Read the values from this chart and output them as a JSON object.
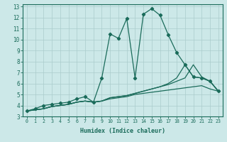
{
  "title": "",
  "xlabel": "Humidex (Indice chaleur)",
  "bg_color": "#cce8e8",
  "grid_color": "#aacccc",
  "line_color": "#1a6b5a",
  "xlim": [
    -0.5,
    23.5
  ],
  "ylim": [
    3,
    13.2
  ],
  "xticks": [
    0,
    1,
    2,
    3,
    4,
    5,
    6,
    7,
    8,
    9,
    10,
    11,
    12,
    13,
    14,
    15,
    16,
    17,
    18,
    19,
    20,
    21,
    22,
    23
  ],
  "yticks": [
    3,
    4,
    5,
    6,
    7,
    8,
    9,
    10,
    11,
    12,
    13
  ],
  "line1_x": [
    0,
    1,
    2,
    3,
    4,
    5,
    6,
    7,
    8,
    9,
    10,
    11,
    12,
    13,
    14,
    15,
    16,
    17,
    18,
    19,
    20,
    21,
    22,
    23
  ],
  "line1_y": [
    3.5,
    3.7,
    4.0,
    4.1,
    4.2,
    4.3,
    4.6,
    4.8,
    4.3,
    6.5,
    10.5,
    10.1,
    11.9,
    6.5,
    12.3,
    12.8,
    12.2,
    10.4,
    8.8,
    7.7,
    6.6,
    6.5,
    6.2,
    5.3
  ],
  "line2_x": [
    0,
    1,
    2,
    3,
    4,
    5,
    6,
    7,
    8,
    9,
    10,
    11,
    12,
    13,
    14,
    15,
    16,
    17,
    18,
    19,
    20,
    21,
    22,
    23
  ],
  "line2_y": [
    3.5,
    3.6,
    3.7,
    3.9,
    4.0,
    4.1,
    4.3,
    4.4,
    4.3,
    4.4,
    4.6,
    4.7,
    4.8,
    5.0,
    5.1,
    5.2,
    5.3,
    5.4,
    5.5,
    5.6,
    5.7,
    5.8,
    5.5,
    5.3
  ],
  "line3_x": [
    0,
    1,
    2,
    3,
    4,
    5,
    6,
    7,
    8,
    9,
    10,
    11,
    12,
    13,
    14,
    15,
    16,
    17,
    18,
    19,
    20,
    21,
    22,
    23
  ],
  "line3_y": [
    3.5,
    3.6,
    3.7,
    3.9,
    4.0,
    4.1,
    4.3,
    4.4,
    4.3,
    4.4,
    4.7,
    4.8,
    4.9,
    5.1,
    5.3,
    5.5,
    5.7,
    5.9,
    6.2,
    6.5,
    7.7,
    6.6,
    6.2,
    5.3
  ],
  "line4_x": [
    0,
    1,
    2,
    3,
    4,
    5,
    6,
    7,
    8,
    9,
    10,
    11,
    12,
    13,
    14,
    15,
    16,
    17,
    18,
    19,
    20,
    21,
    22,
    23
  ],
  "line4_y": [
    3.5,
    3.6,
    3.7,
    3.9,
    4.0,
    4.1,
    4.3,
    4.4,
    4.3,
    4.4,
    4.7,
    4.8,
    4.9,
    5.1,
    5.3,
    5.5,
    5.7,
    6.0,
    6.5,
    7.7,
    6.6,
    6.5,
    6.2,
    5.3
  ]
}
